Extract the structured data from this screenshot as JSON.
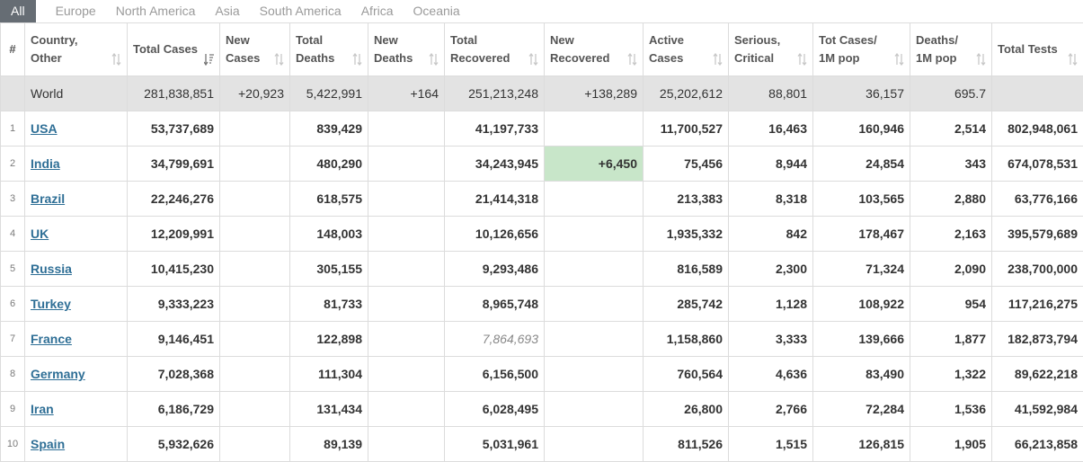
{
  "tabs": [
    {
      "label": "All",
      "active": true
    },
    {
      "label": "Europe",
      "active": false
    },
    {
      "label": "North America",
      "active": false
    },
    {
      "label": "Asia",
      "active": false
    },
    {
      "label": "South America",
      "active": false
    },
    {
      "label": "Africa",
      "active": false
    },
    {
      "label": "Oceania",
      "active": false
    }
  ],
  "columns": [
    {
      "label": "#"
    },
    {
      "label": "Country, Other"
    },
    {
      "label": "Total Cases",
      "sort": "active-desc"
    },
    {
      "label": "New Cases"
    },
    {
      "label": "Total Deaths"
    },
    {
      "label": "New Deaths"
    },
    {
      "label": "Total Recovered"
    },
    {
      "label": "New Recovered"
    },
    {
      "label": "Active Cases"
    },
    {
      "label": "Serious, Critical"
    },
    {
      "label": "Tot Cases/ 1M pop"
    },
    {
      "label": "Deaths/ 1M pop"
    },
    {
      "label": "Total Tests"
    }
  ],
  "world": {
    "name": "World",
    "total_cases": "281,838,851",
    "new_cases": "+20,923",
    "total_deaths": "5,422,991",
    "new_deaths": "+164",
    "total_recovered": "251,213,248",
    "new_recovered": "+138,289",
    "active_cases": "25,202,612",
    "serious_critical": "88,801",
    "cases_per_1m": "36,157",
    "deaths_per_1m": "695.7",
    "total_tests": ""
  },
  "rows": [
    {
      "idx": "1",
      "country": "USA",
      "total_cases": "53,737,689",
      "new_cases": "",
      "total_deaths": "839,429",
      "new_deaths": "",
      "total_recovered": "41,197,733",
      "new_recovered": "",
      "active_cases": "11,700,527",
      "serious_critical": "16,463",
      "cases_per_1m": "160,946",
      "deaths_per_1m": "2,514",
      "total_tests": "802,948,061"
    },
    {
      "idx": "2",
      "country": "India",
      "total_cases": "34,799,691",
      "new_cases": "",
      "total_deaths": "480,290",
      "new_deaths": "",
      "total_recovered": "34,243,945",
      "new_recovered": "+6,450",
      "active_cases": "75,456",
      "serious_critical": "8,944",
      "cases_per_1m": "24,854",
      "deaths_per_1m": "343",
      "total_tests": "674,078,531"
    },
    {
      "idx": "3",
      "country": "Brazil",
      "total_cases": "22,246,276",
      "new_cases": "",
      "total_deaths": "618,575",
      "new_deaths": "",
      "total_recovered": "21,414,318",
      "new_recovered": "",
      "active_cases": "213,383",
      "serious_critical": "8,318",
      "cases_per_1m": "103,565",
      "deaths_per_1m": "2,880",
      "total_tests": "63,776,166"
    },
    {
      "idx": "4",
      "country": "UK",
      "total_cases": "12,209,991",
      "new_cases": "",
      "total_deaths": "148,003",
      "new_deaths": "",
      "total_recovered": "10,126,656",
      "new_recovered": "",
      "active_cases": "1,935,332",
      "serious_critical": "842",
      "cases_per_1m": "178,467",
      "deaths_per_1m": "2,163",
      "total_tests": "395,579,689"
    },
    {
      "idx": "5",
      "country": "Russia",
      "total_cases": "10,415,230",
      "new_cases": "",
      "total_deaths": "305,155",
      "new_deaths": "",
      "total_recovered": "9,293,486",
      "new_recovered": "",
      "active_cases": "816,589",
      "serious_critical": "2,300",
      "cases_per_1m": "71,324",
      "deaths_per_1m": "2,090",
      "total_tests": "238,700,000"
    },
    {
      "idx": "6",
      "country": "Turkey",
      "total_cases": "9,333,223",
      "new_cases": "",
      "total_deaths": "81,733",
      "new_deaths": "",
      "total_recovered": "8,965,748",
      "new_recovered": "",
      "active_cases": "285,742",
      "serious_critical": "1,128",
      "cases_per_1m": "108,922",
      "deaths_per_1m": "954",
      "total_tests": "117,216,275"
    },
    {
      "idx": "7",
      "country": "France",
      "total_cases": "9,146,451",
      "new_cases": "",
      "total_deaths": "122,898",
      "new_deaths": "",
      "total_recovered": "7,864,693",
      "new_recovered": "",
      "active_cases": "1,158,860",
      "serious_critical": "3,333",
      "cases_per_1m": "139,666",
      "deaths_per_1m": "1,877",
      "total_tests": "182,873,794"
    },
    {
      "idx": "8",
      "country": "Germany",
      "total_cases": "7,028,368",
      "new_cases": "",
      "total_deaths": "111,304",
      "new_deaths": "",
      "total_recovered": "6,156,500",
      "new_recovered": "",
      "active_cases": "760,564",
      "serious_critical": "4,636",
      "cases_per_1m": "83,490",
      "deaths_per_1m": "1,322",
      "total_tests": "89,622,218"
    },
    {
      "idx": "9",
      "country": "Iran",
      "total_cases": "6,186,729",
      "new_cases": "",
      "total_deaths": "131,434",
      "new_deaths": "",
      "total_recovered": "6,028,495",
      "new_recovered": "",
      "active_cases": "26,800",
      "serious_critical": "2,766",
      "cases_per_1m": "72,284",
      "deaths_per_1m": "1,536",
      "total_tests": "41,592,984"
    },
    {
      "idx": "10",
      "country": "Spain",
      "total_cases": "5,932,626",
      "new_cases": "",
      "total_deaths": "89,139",
      "new_deaths": "",
      "total_recovered": "5,031,961",
      "new_recovered": "",
      "active_cases": "811,526",
      "serious_critical": "1,515",
      "cases_per_1m": "126,815",
      "deaths_per_1m": "1,905",
      "total_tests": "66,213,858"
    }
  ],
  "highlights": {
    "new_recovered_color": "#c8e6c9",
    "link_color": "#2f6f96",
    "world_row_color": "#e3e3e3",
    "active_tab_color": "#666d74"
  },
  "cell_styles": {
    "1.new_recovered": "green",
    "6.total_recovered": "italic"
  }
}
